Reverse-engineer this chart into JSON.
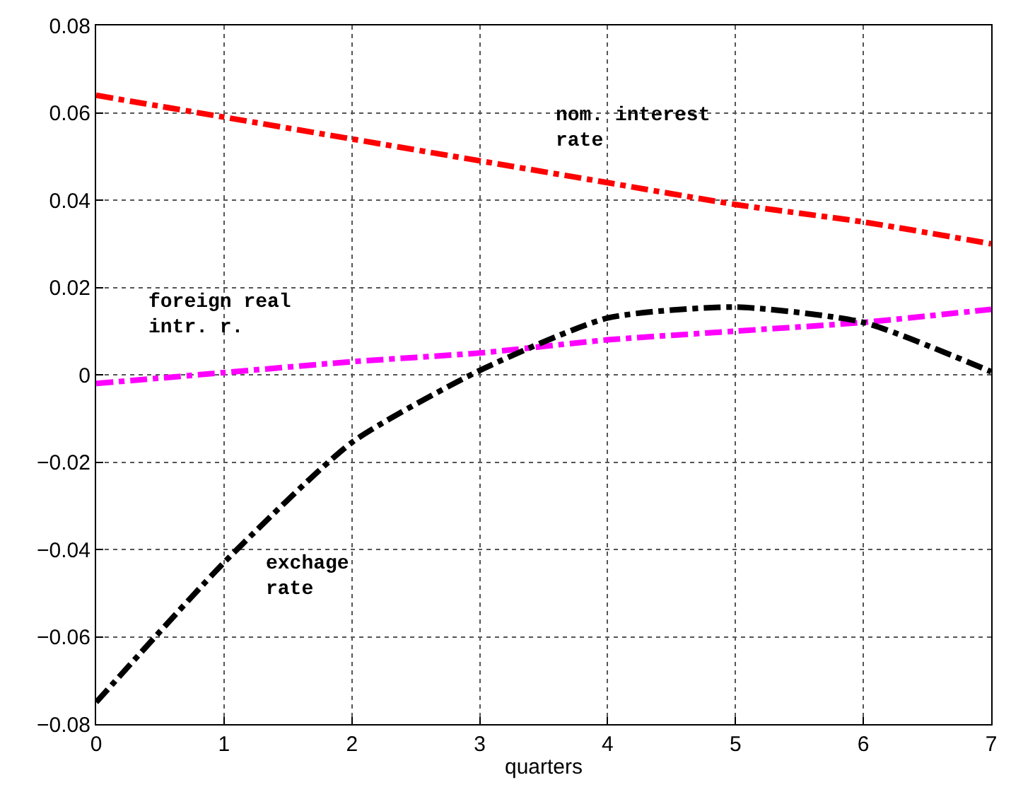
{
  "chart_data": {
    "type": "line",
    "xlabel": "quarters",
    "x": [
      0,
      1,
      2,
      3,
      4,
      5,
      6,
      7
    ],
    "series": [
      {
        "color": "#ff0000",
        "values": [
          0.064,
          0.059,
          0.054,
          0.049,
          0.044,
          0.039,
          0.035,
          0.03
        ]
      },
      {
        "color": "#ff00ff",
        "values": [
          -0.002,
          0.0005,
          0.003,
          0.005,
          0.008,
          0.01,
          0.012,
          0.015
        ]
      },
      {
        "color": "#000000",
        "values": [
          -0.075,
          -0.043,
          -0.0155,
          0.001,
          0.013,
          0.0155,
          0.012,
          0.0007
        ]
      }
    ],
    "annotations": [
      "nom. interest\nrate",
      "foreign real\nintr. r.",
      "exchage\nrate"
    ],
    "xlim": [
      0,
      7
    ],
    "xticks": [
      0,
      1,
      2,
      3,
      4,
      5,
      6,
      7
    ],
    "ylim": [
      -0.08,
      0.08
    ],
    "yticks": [
      -0.08,
      -0.06,
      -0.04,
      -0.02,
      0,
      0.02,
      0.04,
      0.06,
      0.08
    ],
    "grid": true,
    "line_style": "dashdot",
    "marker": "none"
  }
}
